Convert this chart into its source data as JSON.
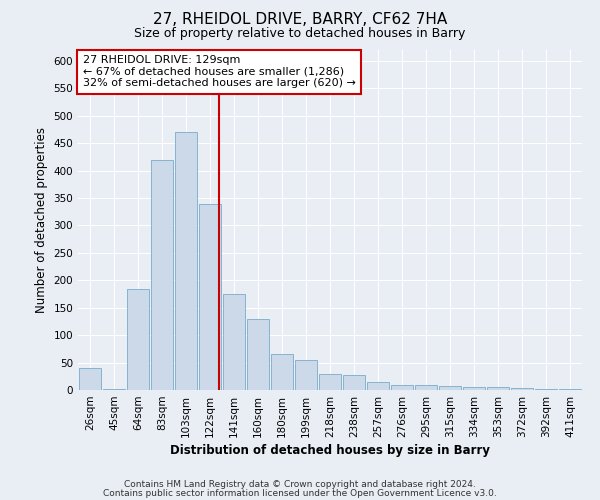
{
  "title": "27, RHEIDOL DRIVE, BARRY, CF62 7HA",
  "subtitle": "Size of property relative to detached houses in Barry",
  "xlabel": "Distribution of detached houses by size in Barry",
  "ylabel": "Number of detached properties",
  "bin_labels": [
    "26sqm",
    "45sqm",
    "64sqm",
    "83sqm",
    "103sqm",
    "122sqm",
    "141sqm",
    "160sqm",
    "180sqm",
    "199sqm",
    "218sqm",
    "238sqm",
    "257sqm",
    "276sqm",
    "295sqm",
    "315sqm",
    "334sqm",
    "353sqm",
    "372sqm",
    "392sqm",
    "411sqm"
  ],
  "bar_heights": [
    40,
    2,
    185,
    420,
    470,
    340,
    175,
    130,
    65,
    55,
    30,
    28,
    15,
    10,
    10,
    8,
    5,
    5,
    3,
    2,
    2
  ],
  "bar_color": "#ccd9e8",
  "bar_edgecolor": "#7aabcc",
  "vline_color": "#cc0000",
  "annotation_text": "27 RHEIDOL DRIVE: 129sqm\n← 67% of detached houses are smaller (1,286)\n32% of semi-detached houses are larger (620) →",
  "annotation_box_facecolor": "#ffffff",
  "annotation_box_edgecolor": "#cc0000",
  "ylim": [
    0,
    620
  ],
  "yticks": [
    0,
    50,
    100,
    150,
    200,
    250,
    300,
    350,
    400,
    450,
    500,
    550,
    600
  ],
  "footer_line1": "Contains HM Land Registry data © Crown copyright and database right 2024.",
  "footer_line2": "Contains public sector information licensed under the Open Government Licence v3.0.",
  "background_color": "#e8eef4",
  "grid_color": "#ffffff",
  "title_fontsize": 11,
  "subtitle_fontsize": 9,
  "axis_label_fontsize": 8.5,
  "tick_fontsize": 7.5,
  "annotation_fontsize": 8,
  "footer_fontsize": 6.5
}
